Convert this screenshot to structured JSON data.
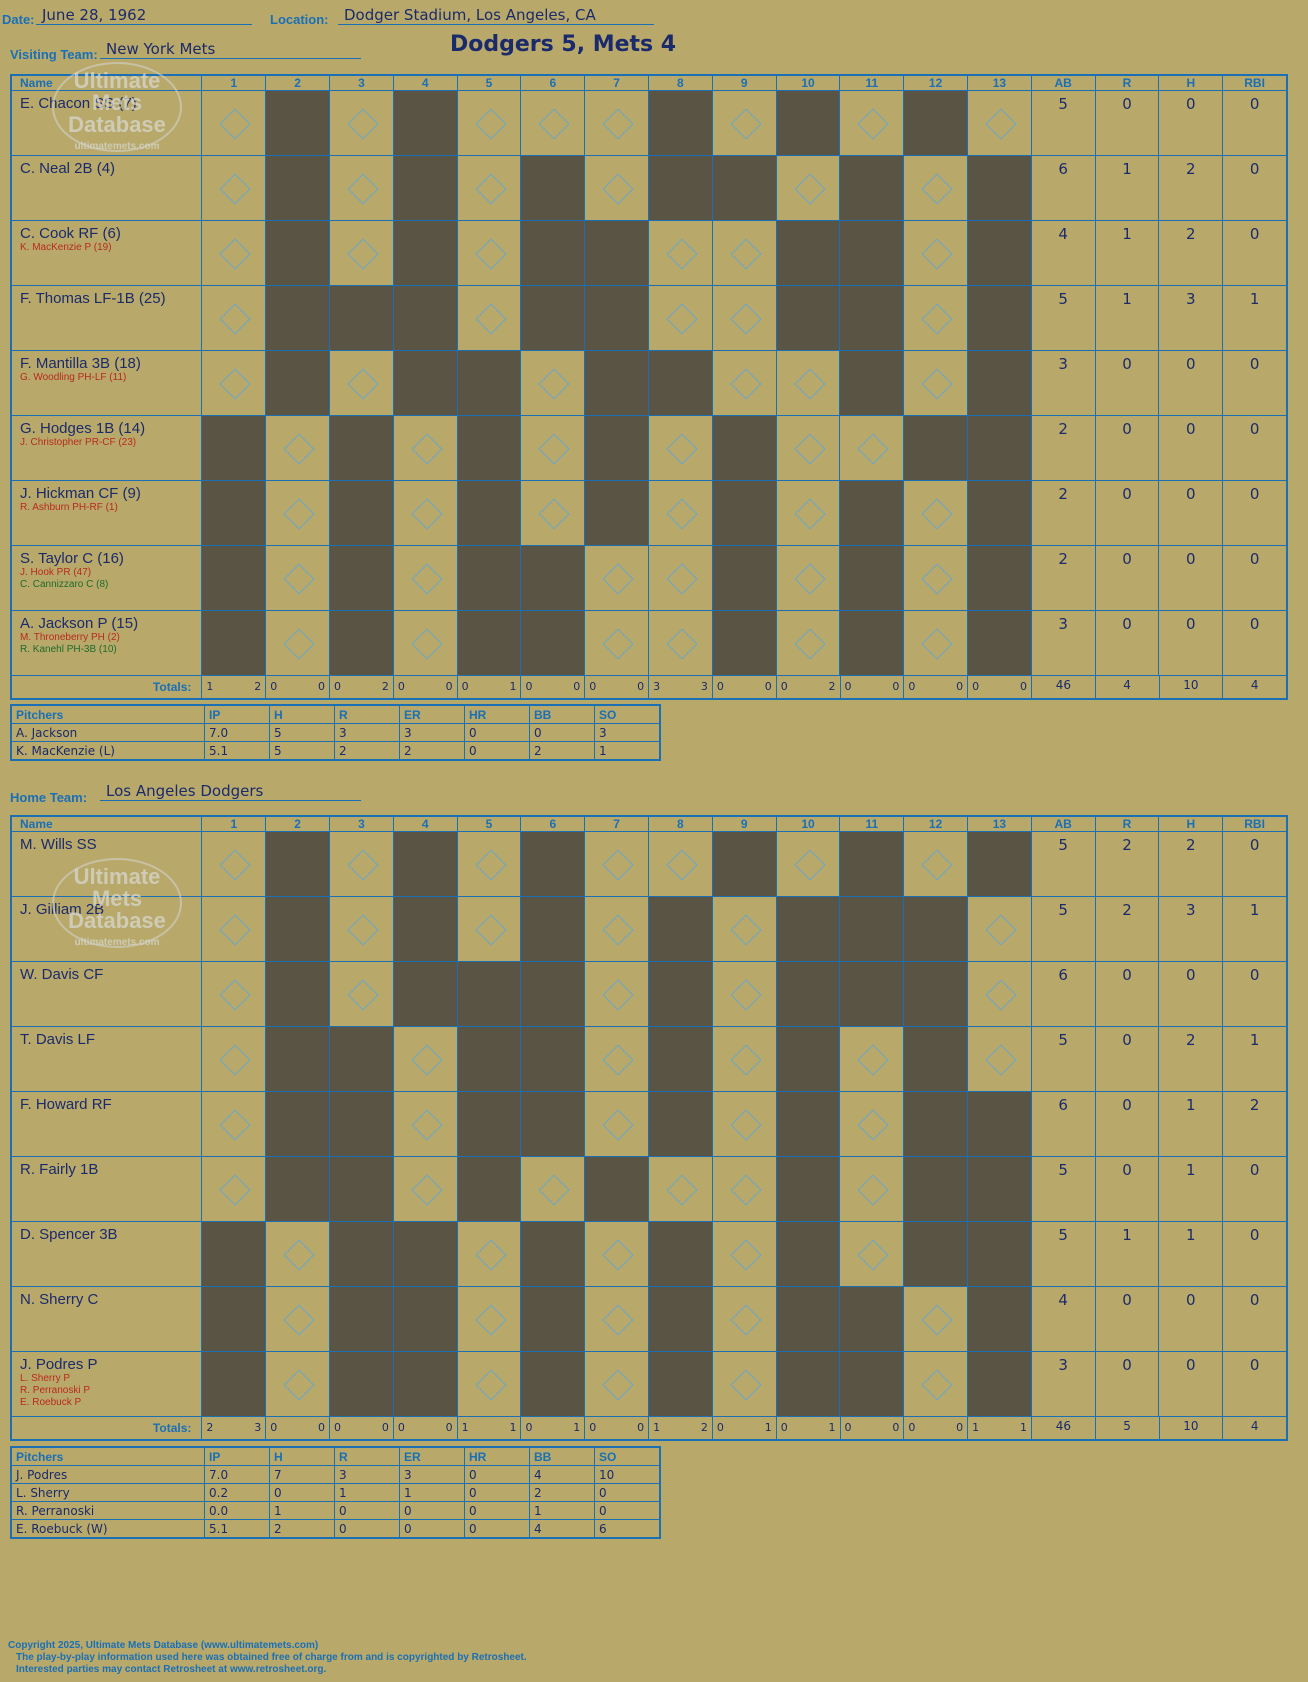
{
  "header": {
    "date_label": "Date:",
    "date": "June 28, 1962",
    "location_label": "Location:",
    "location": "Dodger Stadium, Los Angeles, CA",
    "visiting_label": "Visiting Team:",
    "visiting": "New York Mets",
    "home_label": "Home Team:",
    "home": "Los Angeles Dodgers",
    "title": "Dodgers 5, Mets 4"
  },
  "grid_headers": [
    "Name",
    "1",
    "2",
    "3",
    "4",
    "5",
    "6",
    "7",
    "8",
    "9",
    "10",
    "11",
    "12",
    "13",
    "AB",
    "R",
    "H",
    "RBI"
  ],
  "totals_label": "Totals:",
  "visitors": {
    "rows": [
      {
        "name": "E. Chacon SS (7)",
        "subs": [],
        "stats": [
          "5",
          "0",
          "0",
          "0"
        ]
      },
      {
        "name": "C. Neal 2B (4)",
        "subs": [],
        "stats": [
          "6",
          "1",
          "2",
          "0"
        ]
      },
      {
        "name": "C. Cook RF (6)",
        "subs": [
          "K. MacKenzie P (19)"
        ],
        "stats": [
          "4",
          "1",
          "2",
          "0"
        ]
      },
      {
        "name": "F. Thomas LF-1B (25)",
        "subs": [],
        "stats": [
          "5",
          "1",
          "3",
          "1"
        ]
      },
      {
        "name": "F. Mantilla 3B (18)",
        "subs": [
          "G. Woodling PH-LF (11)"
        ],
        "stats": [
          "3",
          "0",
          "0",
          "0"
        ]
      },
      {
        "name": "G. Hodges 1B (14)",
        "subs": [
          "J. Christopher PR-CF (23)"
        ],
        "stats": [
          "2",
          "0",
          "0",
          "0"
        ]
      },
      {
        "name": "J. Hickman CF (9)",
        "subs": [
          "R. Ashburn PH-RF (1)"
        ],
        "stats": [
          "2",
          "0",
          "0",
          "0"
        ]
      },
      {
        "name": "S. Taylor C (16)",
        "subs": [
          "J. Hook PR (47)",
          "C. Cannizzaro C (8)"
        ],
        "stats": [
          "2",
          "0",
          "0",
          "0"
        ]
      },
      {
        "name": "A. Jackson P (15)",
        "subs": [
          "M. Throneberry PH (2)",
          "R. Kanehl PH-3B (10)"
        ],
        "stats": [
          "3",
          "0",
          "0",
          "0"
        ]
      }
    ],
    "totals": [
      "1 2",
      "0 0",
      "0 2",
      "0 0",
      "0 1",
      "0 0",
      "0 0",
      "3 3",
      "0 0",
      "0 2",
      "0 0",
      "0 0",
      "0 0"
    ],
    "total_stats": [
      "46",
      "4",
      "10",
      "4"
    ]
  },
  "home_team": {
    "rows": [
      {
        "name": "M. Wills SS",
        "subs": [],
        "stats": [
          "5",
          "2",
          "2",
          "0"
        ]
      },
      {
        "name": "J. Gilliam 2B",
        "subs": [],
        "stats": [
          "5",
          "2",
          "3",
          "1"
        ]
      },
      {
        "name": "W. Davis CF",
        "subs": [],
        "stats": [
          "6",
          "0",
          "0",
          "0"
        ]
      },
      {
        "name": "T. Davis LF",
        "subs": [],
        "stats": [
          "5",
          "0",
          "2",
          "1"
        ]
      },
      {
        "name": "F. Howard RF",
        "subs": [],
        "stats": [
          "6",
          "0",
          "1",
          "2"
        ]
      },
      {
        "name": "R. Fairly 1B",
        "subs": [],
        "stats": [
          "5",
          "0",
          "1",
          "0"
        ]
      },
      {
        "name": "D. Spencer 3B",
        "subs": [],
        "stats": [
          "5",
          "1",
          "1",
          "0"
        ]
      },
      {
        "name": "N. Sherry C",
        "subs": [],
        "stats": [
          "4",
          "0",
          "0",
          "0"
        ]
      },
      {
        "name": "J. Podres P",
        "subs": [
          "L. Sherry P",
          "R. Perranoski P",
          "E. Roebuck P"
        ],
        "stats": [
          "3",
          "0",
          "0",
          "0"
        ]
      }
    ],
    "totals": [
      "2 3",
      "0 0",
      "0 0",
      "0 0",
      "1 1",
      "0 1",
      "0 0",
      "1 2",
      "0 1",
      "0 1",
      "0 0",
      "0 0",
      "1 1"
    ],
    "total_stats": [
      "46",
      "5",
      "10",
      "4"
    ]
  },
  "pitch_headers": [
    "Pitchers",
    "IP",
    "H",
    "R",
    "ER",
    "HR",
    "BB",
    "SO"
  ],
  "visitor_pitchers": [
    [
      "A. Jackson",
      "7.0",
      "5",
      "3",
      "3",
      "0",
      "0",
      "3"
    ],
    [
      "K. MacKenzie (L)",
      "5.1",
      "5",
      "2",
      "2",
      "0",
      "2",
      "1"
    ]
  ],
  "home_pitchers": [
    [
      "J. Podres",
      "7.0",
      "7",
      "3",
      "3",
      "0",
      "4",
      "10"
    ],
    [
      "L. Sherry",
      "0.2",
      "0",
      "1",
      "1",
      "0",
      "2",
      "0"
    ],
    [
      "R. Perranoski",
      "0.0",
      "1",
      "0",
      "0",
      "0",
      "1",
      "0"
    ],
    [
      "E. Roebuck (W)",
      "5.1",
      "2",
      "0",
      "0",
      "0",
      "4",
      "6"
    ]
  ],
  "logo": {
    "line1": "Ultimate",
    "line2": "Mets",
    "line3": "Database",
    "url": "ultimatemets.com"
  },
  "footer": [
    "Copyright 2025, Ultimate Mets Database (www.ultimatemets.com)",
    "The play-by-play information used here was obtained free of charge from and is copyrighted by Retrosheet.",
    "Interested parties may contact Retrosheet at www.retrosheet.org."
  ],
  "colors": {
    "background": "#b8a96b",
    "grid": "#1a6fb5",
    "ink": "#1b2a6b",
    "red_ink": "#b82a1d",
    "dark_cell": "#5a5444"
  }
}
